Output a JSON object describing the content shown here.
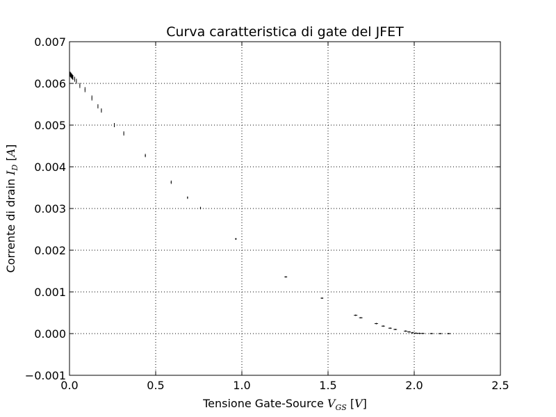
{
  "chart_data": {
    "type": "scatter",
    "title": "Curva caratteristica di gate del JFET",
    "xlabel": {
      "text": "Tensione Gate-Source ",
      "sym": "V",
      "sub": "GS",
      "unit": "V"
    },
    "ylabel": {
      "text": "Corrente di drain ",
      "sym": "I",
      "sub": "D",
      "unit": "A"
    },
    "xlim": [
      0,
      2.5
    ],
    "ylim": [
      -0.001,
      0.007
    ],
    "xticks": [
      "0.0",
      "0.5",
      "1.0",
      "1.5",
      "2.0",
      "2.5"
    ],
    "yticks": [
      "−0.001",
      "0.000",
      "0.001",
      "0.002",
      "0.003",
      "0.004",
      "0.005",
      "0.006",
      "0.007"
    ],
    "grid": true,
    "legend": "none",
    "error_bars": true,
    "points": [
      {
        "x": 0.0,
        "y": 0.00625,
        "yerr": 6e-05,
        "xerr": 0.002
      },
      {
        "x": 0.004,
        "y": 0.00622,
        "yerr": 6e-05,
        "xerr": 0.002
      },
      {
        "x": 0.008,
        "y": 0.0062,
        "yerr": 6e-05,
        "xerr": 0.002
      },
      {
        "x": 0.012,
        "y": 0.00618,
        "yerr": 6e-05,
        "xerr": 0.002
      },
      {
        "x": 0.016,
        "y": 0.00616,
        "yerr": 6e-05,
        "xerr": 0.002
      },
      {
        "x": 0.02,
        "y": 0.00614,
        "yerr": 6e-05,
        "xerr": 0.002
      },
      {
        "x": 0.03,
        "y": 0.0061,
        "yerr": 6e-05,
        "xerr": 0.002
      },
      {
        "x": 0.04,
        "y": 0.00605,
        "yerr": 6e-05,
        "xerr": 0.002
      },
      {
        "x": 0.06,
        "y": 0.00595,
        "yerr": 6e-05,
        "xerr": 0.002
      },
      {
        "x": 0.09,
        "y": 0.00585,
        "yerr": 6e-05,
        "xerr": 0.002
      },
      {
        "x": 0.13,
        "y": 0.00565,
        "yerr": 6e-05,
        "xerr": 0.002
      },
      {
        "x": 0.165,
        "y": 0.00545,
        "yerr": 5e-05,
        "xerr": 0.002
      },
      {
        "x": 0.185,
        "y": 0.00535,
        "yerr": 5e-05,
        "xerr": 0.002
      },
      {
        "x": 0.26,
        "y": 0.005,
        "yerr": 5e-05,
        "xerr": 0.002
      },
      {
        "x": 0.315,
        "y": 0.0048,
        "yerr": 5e-05,
        "xerr": 0.002
      },
      {
        "x": 0.44,
        "y": 0.00427,
        "yerr": 4e-05,
        "xerr": 0.003
      },
      {
        "x": 0.59,
        "y": 0.00363,
        "yerr": 4e-05,
        "xerr": 0.003
      },
      {
        "x": 0.685,
        "y": 0.00326,
        "yerr": 3e-05,
        "xerr": 0.003
      },
      {
        "x": 0.76,
        "y": 0.00301,
        "yerr": 3e-05,
        "xerr": 0.003
      },
      {
        "x": 0.965,
        "y": 0.00227,
        "yerr": 2e-05,
        "xerr": 0.005
      },
      {
        "x": 1.255,
        "y": 0.00136,
        "yerr": 1e-05,
        "xerr": 0.008
      },
      {
        "x": 1.465,
        "y": 0.00085,
        "yerr": 1e-05,
        "xerr": 0.008
      },
      {
        "x": 1.66,
        "y": 0.00044,
        "yerr": 5e-06,
        "xerr": 0.01
      },
      {
        "x": 1.69,
        "y": 0.00038,
        "yerr": 5e-06,
        "xerr": 0.01
      },
      {
        "x": 1.78,
        "y": 0.00024,
        "yerr": 3e-06,
        "xerr": 0.01
      },
      {
        "x": 1.82,
        "y": 0.00018,
        "yerr": 3e-06,
        "xerr": 0.01
      },
      {
        "x": 1.86,
        "y": 0.00013,
        "yerr": 2e-06,
        "xerr": 0.01
      },
      {
        "x": 1.89,
        "y": 0.0001,
        "yerr": 2e-06,
        "xerr": 0.01
      },
      {
        "x": 1.95,
        "y": 6e-05,
        "yerr": 2e-06,
        "xerr": 0.01
      },
      {
        "x": 1.97,
        "y": 4e-05,
        "yerr": 2e-06,
        "xerr": 0.01
      },
      {
        "x": 1.99,
        "y": 2e-05,
        "yerr": 2e-06,
        "xerr": 0.01
      },
      {
        "x": 2.01,
        "y": 1e-05,
        "yerr": 1e-06,
        "xerr": 0.01
      },
      {
        "x": 2.03,
        "y": 5e-06,
        "yerr": 1e-06,
        "xerr": 0.01
      },
      {
        "x": 2.05,
        "y": 3e-06,
        "yerr": 1e-06,
        "xerr": 0.01
      },
      {
        "x": 2.1,
        "y": 1e-06,
        "yerr": 1e-06,
        "xerr": 0.01
      },
      {
        "x": 2.15,
        "y": 0.0,
        "yerr": 1e-06,
        "xerr": 0.01
      },
      {
        "x": 2.2,
        "y": 0.0,
        "yerr": 1e-06,
        "xerr": 0.01
      }
    ],
    "colors": {
      "marker": "#000000",
      "grid": "#000000",
      "frame": "#000000"
    }
  }
}
